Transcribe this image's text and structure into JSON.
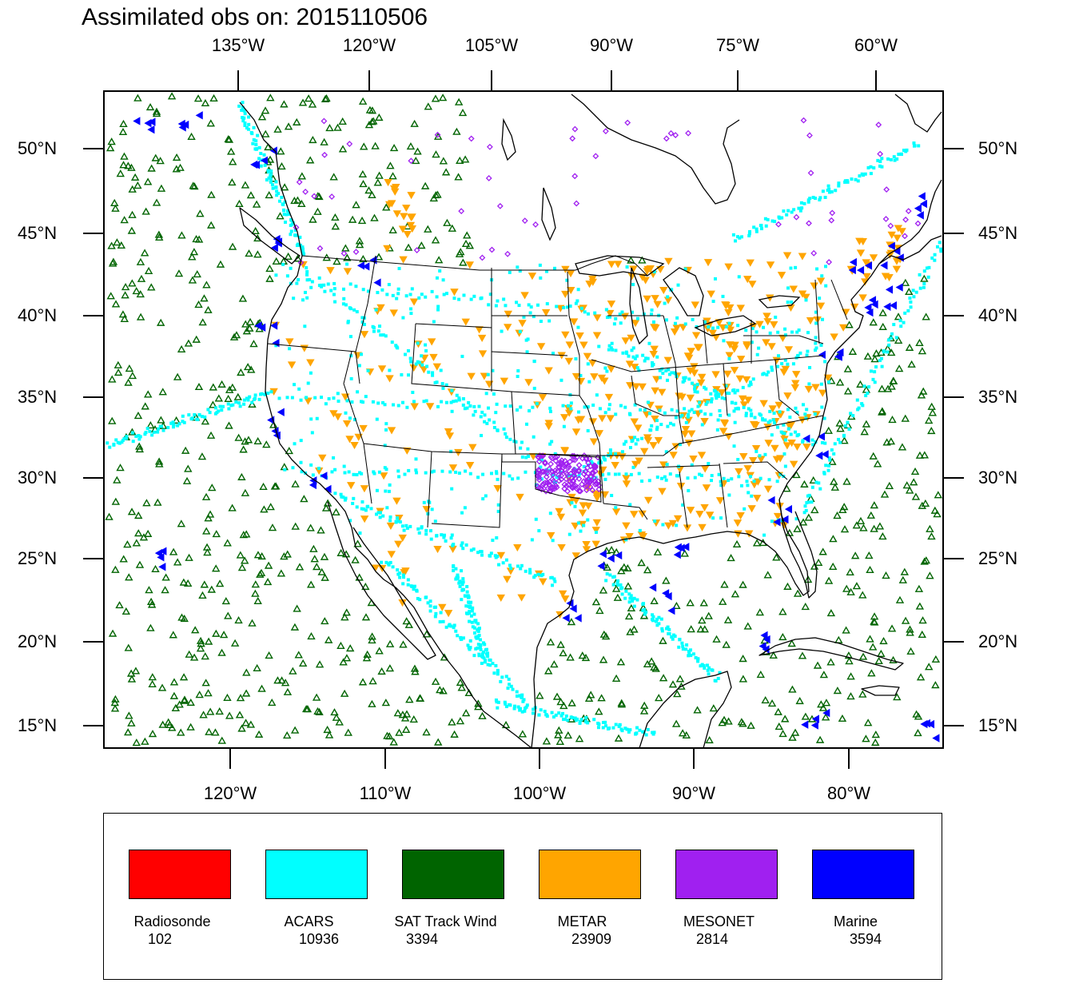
{
  "title": "Assimilated obs on: 2015110506",
  "axes": {
    "top_lon_labels": [
      "135°W",
      "120°W",
      "105°W",
      "90°W",
      "75°W",
      "60°W"
    ],
    "bottom_lon_labels": [
      "120°W",
      "110°W",
      "100°W",
      "90°W",
      "80°W"
    ],
    "lat_labels": [
      "50°N",
      "45°N",
      "40°N",
      "35°N",
      "30°N",
      "25°N",
      "20°N",
      "15°N"
    ]
  },
  "map": {
    "lon_range": [
      -128,
      -73
    ],
    "lat_range": [
      13.8,
      53.5
    ],
    "features": [
      "coastlines",
      "us-state-borders",
      "great-lakes"
    ]
  },
  "legend": [
    {
      "name": "Radiosonde",
      "count": "102",
      "color": "#ff0000"
    },
    {
      "name": "ACARS",
      "count": "10936",
      "color": "#00ffff"
    },
    {
      "name": "SAT Track Wind",
      "count": "3394",
      "color": "#006400"
    },
    {
      "name": "METAR",
      "count": "23909",
      "color": "#ffa500"
    },
    {
      "name": "MESONET",
      "count": "2814",
      "color": "#a020f0"
    },
    {
      "name": "Marine",
      "count": "3594",
      "color": "#0000ff"
    }
  ],
  "marker_shapes": {
    "SAT Track Wind": "open-triangle-up",
    "METAR": "filled-triangle-down",
    "ACARS": "small-square",
    "MESONET": "small-diamond",
    "Marine": "filled-triangle-left"
  }
}
